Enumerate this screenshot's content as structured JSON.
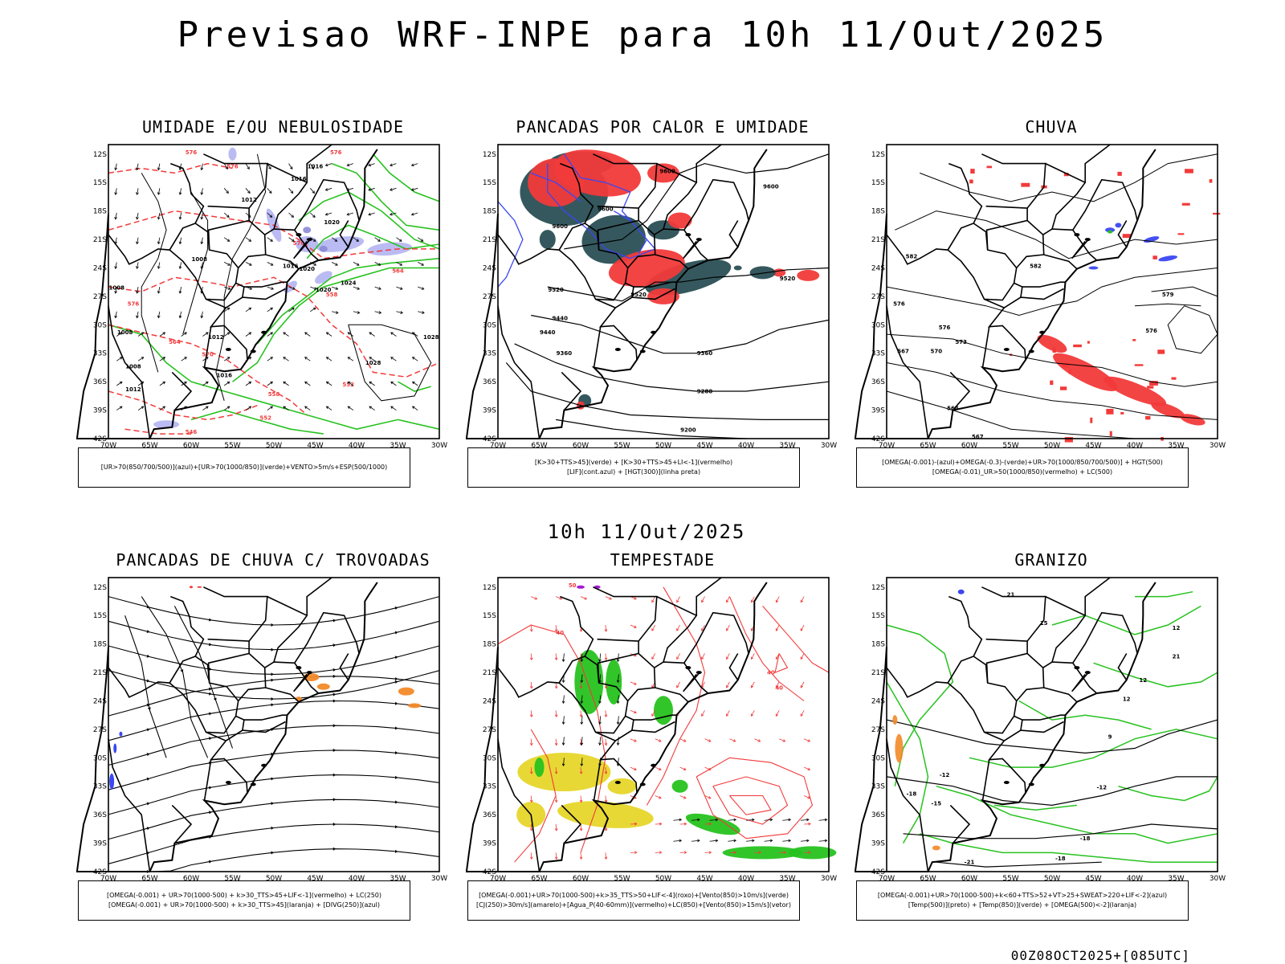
{
  "page": {
    "title": "Previsao WRF-INPE  para 10h 11/Out/2025",
    "subtitle": "10h 11/Out/2025",
    "footer": "00Z08OCT2025+[085UTC]"
  },
  "axes": {
    "lat_labels": [
      "12S",
      "15S",
      "18S",
      "21S",
      "24S",
      "27S",
      "30S",
      "33S",
      "36S",
      "39S",
      "42S"
    ],
    "lon_labels": [
      "70W",
      "65W",
      "60W",
      "55W",
      "50W",
      "45W",
      "40W",
      "35W",
      "30W"
    ]
  },
  "colors": {
    "red": "#f23a3a",
    "blue": "#3a47f2",
    "green": "#27c21f",
    "lavender": "#b4b4f2",
    "darkteal": "#2a4f55",
    "yellow": "#e6d62a",
    "orange": "#f28a28",
    "purple": "#a21bd6",
    "black": "#000000"
  },
  "panels": [
    {
      "title": "UMIDADE E/OU NEBULOSIDADE",
      "legend": [
        "[UR>70(850/700/500)](azul)+[UR>70(1000/850)](verde)+VENTO>5m/s+ESP(500/1000)"
      ],
      "contour_labels": [
        "1016",
        "1012",
        "1016",
        "1020",
        "1008",
        "1020",
        "1016",
        "1008",
        "1020",
        "1024",
        "1008",
        "1012",
        "1008",
        "1028",
        "1016",
        "1028",
        "1012",
        "576",
        "576",
        "576",
        "570",
        "564",
        "558",
        "552",
        "546",
        "576",
        "564"
      ]
    },
    {
      "title": "PANCADAS POR CALOR E UMIDADE",
      "legend": [
        "[K>30+TTS>45](verde)  +  [K>30+TTS>45+LI<-1](vermelho)",
        "[LIF](cont.azul)  +  [HGT(300)](linha preta)"
      ],
      "contour_labels": [
        "9600",
        "9600",
        "9600",
        "9600",
        "9520",
        "9520",
        "9520",
        "9440",
        "9440",
        "9360",
        "9360",
        "9280",
        "9200"
      ]
    },
    {
      "title": "CHUVA",
      "legend": [
        "[OMEGA(-0.001)-(azul)+OMEGA(-0.3)-(verde)+UR>70(1000/850/700/500)]  +  HGT(500)",
        "[OMEGA(-0.01)_UR>50(1000/850)(vermelho)  +  LC(500)"
      ],
      "contour_labels": [
        "582",
        "582",
        "576",
        "576",
        "573",
        "570",
        "576",
        "579",
        "570",
        "567",
        "564",
        "567"
      ]
    },
    {
      "title": "PANCADAS DE CHUVA C/ TROVOADAS",
      "legend": [
        "[OMEGA(-0.001)  +  UR>70(1000-500)  +  k>30_TTS>45+LIF<-1](vermelho)  +  LC(250)",
        "[OMEGA(-0.001)  +  UR>70(1000-500)  +  k>30_TTS>45](laranja)  +  [DIVG(250)](azul)"
      ],
      "contour_labels": []
    },
    {
      "title": "TEMPESTADE",
      "legend": [
        "[OMEGA(-0.001)+UR>70(1000-500)+k>35_TTS>50+LIF<-4](roxo)+[Vento(850)>10m/s](verde)",
        "[CJ(250)>30m/s](amarelo)+[Agua_P(40-60mm)](vermelho)+LC(850)+[Vento(850)>15m/s](vetor)"
      ],
      "contour_labels": [
        "50",
        "40",
        "40",
        "40"
      ]
    },
    {
      "title": "GRANIZO",
      "legend": [
        "[OMEGA(-0.001)+UR>70(1000-500)+k<60+TTS>52+VT>25+SWEAT>220+LIF<-2](azul)",
        "[Temp(500)](preto)  +  [Temp(850)](verde)  +  [OMEGA(500)<-2](laranja)"
      ],
      "contour_labels": [
        "21",
        "15",
        "12",
        "21",
        "12",
        "12",
        "9",
        "-12",
        "-18",
        "-12",
        "-15",
        "-18",
        "-21",
        "-18"
      ]
    }
  ],
  "chart_data": [
    {
      "type": "map",
      "title": "UMIDADE E/OU NEBULOSIDADE",
      "lat_range": [
        "12S",
        "42S"
      ],
      "lon_range": [
        "70W",
        "30W"
      ]
    },
    {
      "type": "map",
      "title": "PANCADAS POR CALOR E UMIDADE",
      "lat_range": [
        "12S",
        "42S"
      ],
      "lon_range": [
        "70W",
        "30W"
      ]
    },
    {
      "type": "map",
      "title": "CHUVA",
      "lat_range": [
        "12S",
        "42S"
      ],
      "lon_range": [
        "70W",
        "30W"
      ]
    },
    {
      "type": "map",
      "title": "PANCADAS DE CHUVA C/ TROVOADAS",
      "lat_range": [
        "12S",
        "42S"
      ],
      "lon_range": [
        "70W",
        "30W"
      ]
    },
    {
      "type": "map",
      "title": "TEMPESTADE",
      "lat_range": [
        "12S",
        "42S"
      ],
      "lon_range": [
        "70W",
        "30W"
      ]
    },
    {
      "type": "map",
      "title": "GRANIZO",
      "lat_range": [
        "12S",
        "42S"
      ],
      "lon_range": [
        "70W",
        "30W"
      ]
    }
  ]
}
